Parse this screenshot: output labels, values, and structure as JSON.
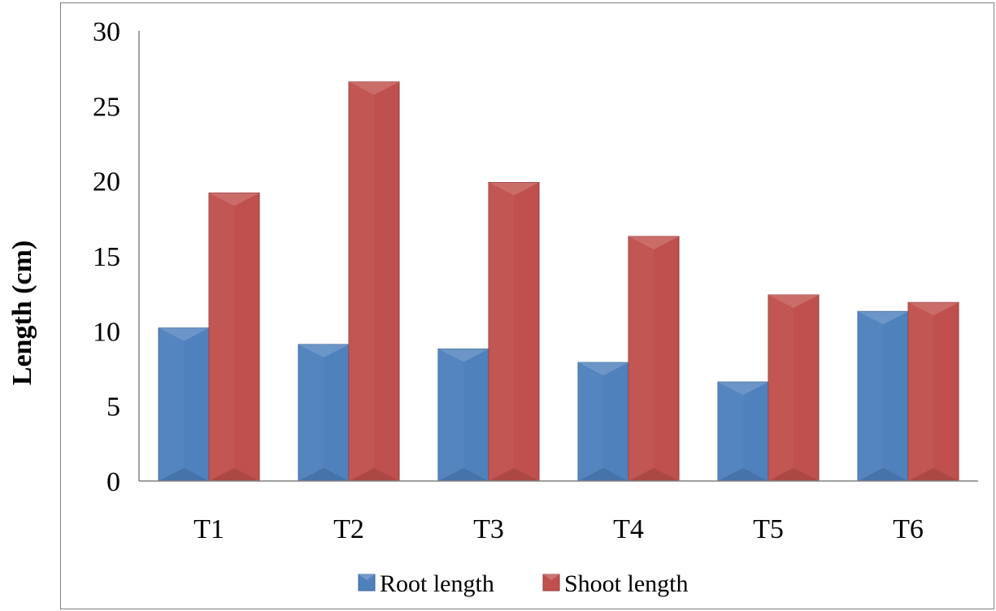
{
  "chart_data": {
    "type": "bar",
    "categories": [
      "T1",
      "T2",
      "T3",
      "T4",
      "T5",
      "T6"
    ],
    "series": [
      {
        "name": "Root length",
        "values": [
          10.2,
          9.1,
          8.8,
          7.9,
          6.6,
          11.3
        ],
        "color": "#4f81bd"
      },
      {
        "name": "Shoot length",
        "values": [
          19.2,
          26.6,
          19.9,
          16.3,
          12.4,
          11.9
        ],
        "color": "#c0504d"
      }
    ],
    "title": "",
    "xlabel": "",
    "ylabel": "Length (cm)",
    "ylim": [
      0,
      30
    ],
    "yticks": [
      "0",
      "5",
      "10",
      "15",
      "20",
      "25",
      "30"
    ],
    "grid": false,
    "legend_position": "bottom"
  }
}
